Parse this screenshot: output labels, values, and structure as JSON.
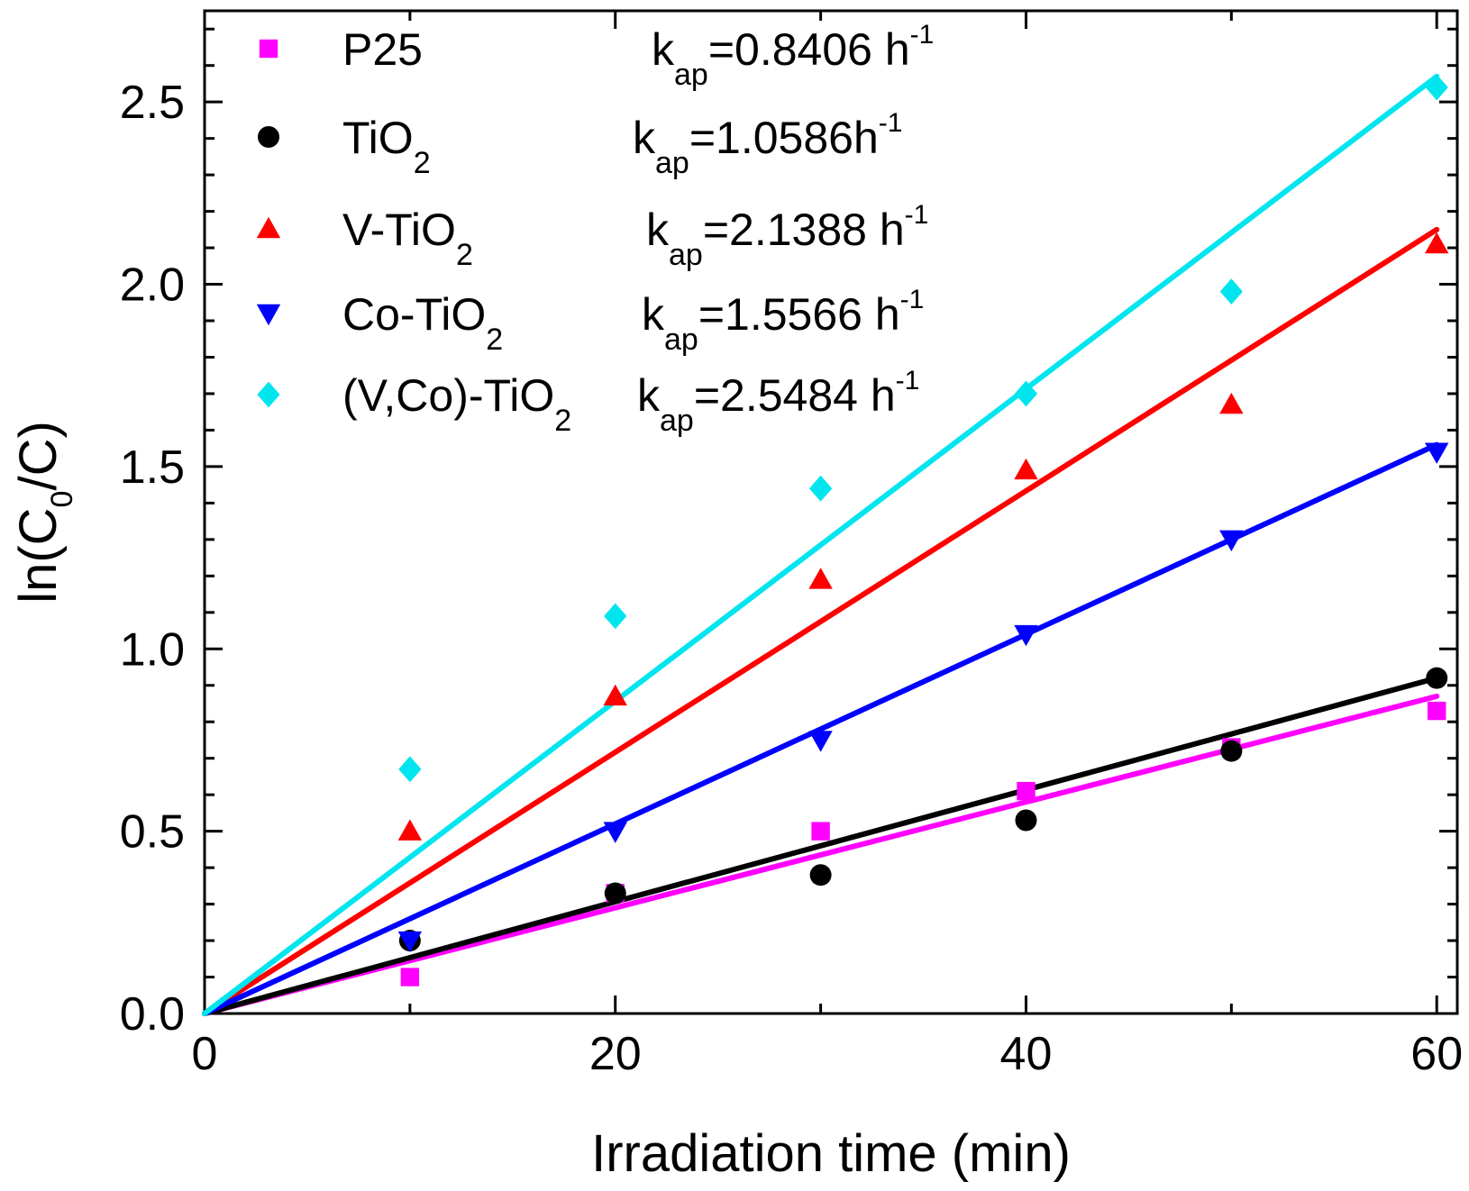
{
  "chart_data": {
    "type": "scatter",
    "title": "",
    "xlabel": "Irradiation time (min)",
    "ylabel": {
      "prefix": "ln(C",
      "sub": "0",
      "suffix": "/C)"
    },
    "xlim": [
      0,
      61
    ],
    "ylim": [
      0,
      2.75
    ],
    "xticks": [
      0,
      20,
      40,
      60
    ],
    "xtick_labels": [
      "0",
      "20",
      "40",
      "60"
    ],
    "yticks": [
      0,
      0.5,
      1.0,
      1.5,
      2.0,
      2.5
    ],
    "ytick_labels": [
      "0.0",
      "0.5",
      "1.0",
      "1.5",
      "2.0",
      "2.5"
    ],
    "x": [
      10,
      20,
      30,
      40,
      50,
      60
    ],
    "legend_position": "top-left",
    "series": [
      {
        "name": "P25",
        "label": {
          "base": "P25",
          "sub": ""
        },
        "marker": "square",
        "color": "#ff00ff",
        "values": [
          0.1,
          0.33,
          0.5,
          0.61,
          0.73,
          0.83
        ],
        "fit_end": [
          60,
          0.87
        ],
        "kap": {
          "k": "k",
          "ksub": "ap",
          "value": "=0.8406 h",
          "sup": "-1"
        }
      },
      {
        "name": "TiO2",
        "label": {
          "base": "TiO",
          "sub": "2"
        },
        "marker": "circle",
        "color": "#000000",
        "values": [
          0.2,
          0.33,
          0.38,
          0.53,
          0.72,
          0.92
        ],
        "fit_end": [
          60,
          0.92
        ],
        "kap": {
          "k": "k",
          "ksub": "ap",
          "value": "=1.0586h",
          "sup": "-1"
        }
      },
      {
        "name": "V-TiO2",
        "label": {
          "base": "V-TiO",
          "sub": "2"
        },
        "marker": "triangle-up",
        "color": "#ff0000",
        "values": [
          0.5,
          0.87,
          1.19,
          1.49,
          1.67,
          2.11
        ],
        "fit_end": [
          60,
          2.15
        ],
        "kap": {
          "k": "k",
          "ksub": "ap",
          "value": "=2.1388 h",
          "sup": "-1"
        }
      },
      {
        "name": "Co-TiO2",
        "label": {
          "base": "Co-TiO",
          "sub": "2"
        },
        "marker": "triangle-down",
        "color": "#0000ff",
        "values": [
          0.2,
          0.5,
          0.75,
          1.04,
          1.3,
          1.54
        ],
        "fit_end": [
          60,
          1.56
        ],
        "kap": {
          "k": "k",
          "ksub": "ap",
          "value": "=1.5566 h",
          "sup": "-1"
        }
      },
      {
        "name": "(V,Co)-TiO2",
        "label": {
          "base": "(V,Co)-TiO",
          "sub": "2"
        },
        "marker": "diamond",
        "color": "#00e5ee",
        "values": [
          0.67,
          1.09,
          1.44,
          1.7,
          1.98,
          2.54
        ],
        "fit_end": [
          60,
          2.57
        ],
        "kap": {
          "k": "k",
          "ksub": "ap",
          "value": "=2.5484 h",
          "sup": "-1"
        }
      }
    ]
  }
}
